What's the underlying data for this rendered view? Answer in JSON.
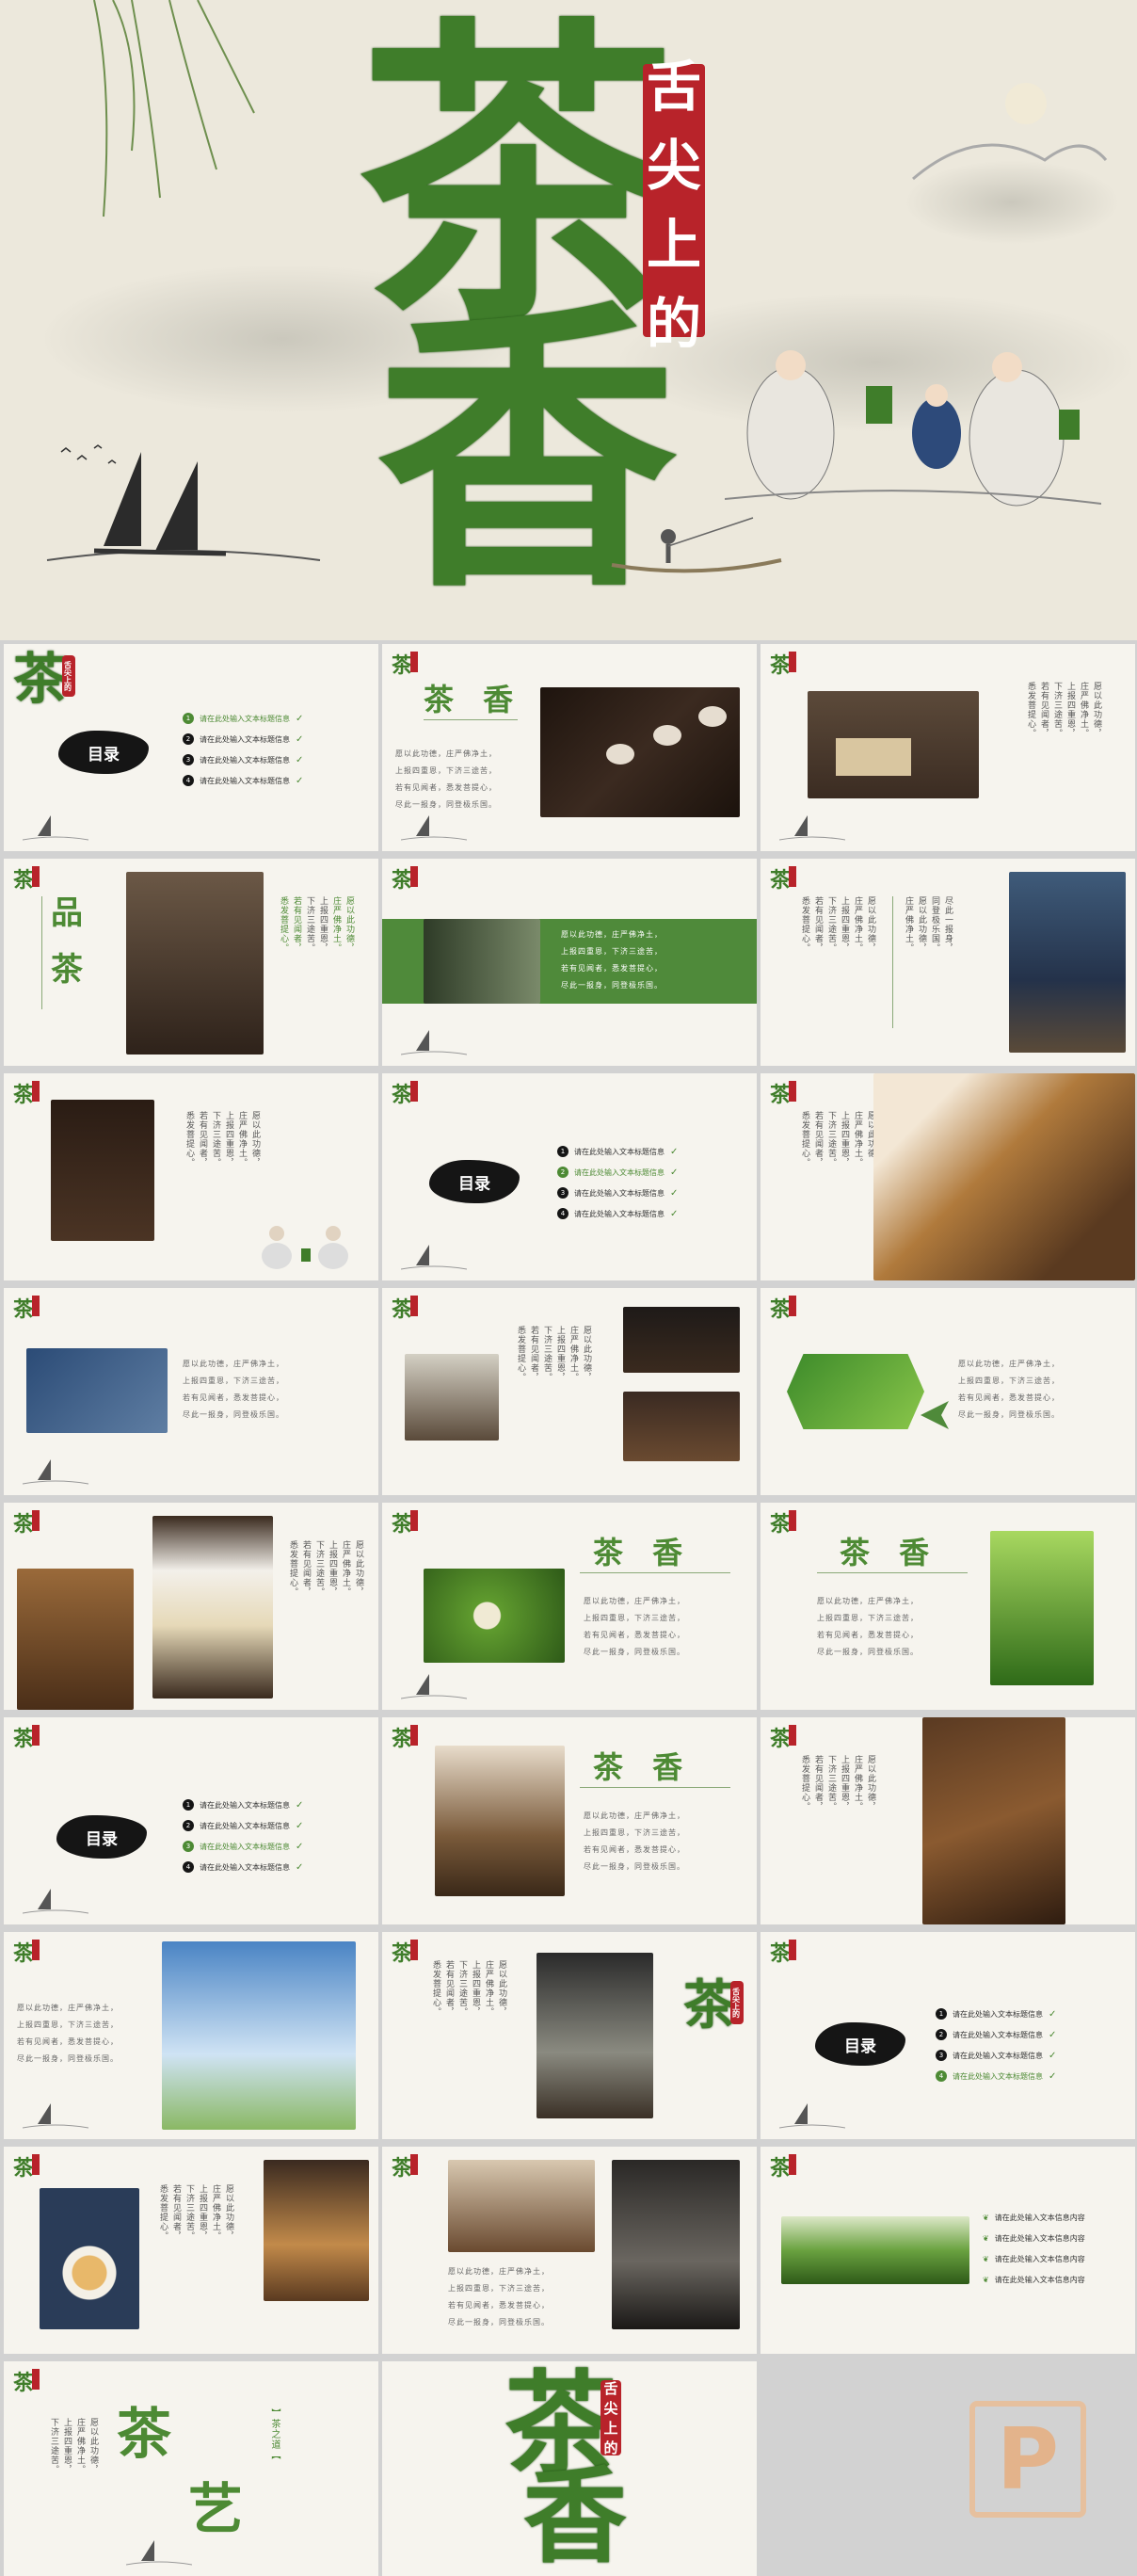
{
  "hero": {
    "char_top": "茶",
    "char_bottom": "香",
    "seal_text": [
      "舌",
      "尖",
      "上",
      "的"
    ]
  },
  "slide_logo": {
    "char": "茶",
    "seal": "舌尖上的"
  },
  "toc": {
    "title": "目录",
    "item": "请在此处输入文本标题信息"
  },
  "text": {
    "cha_xiang": "茶 香",
    "pin": "品",
    "cha": "茶",
    "yi": "艺",
    "cha_zhi_dao": "】茶之道【",
    "poem_lines": [
      "愿以此功德，",
      "庄严佛净土。",
      "上报四重恩，",
      "下济三途苦。",
      "若有见闻者，",
      "悉发菩提心。",
      "尽此一报身，",
      "同登极乐国。"
    ],
    "h_poem": [
      "愿以此功德，庄严佛净土，",
      "上报四重恩，下济三途苦，",
      "若有见闻者，悉发菩提心，",
      "尽此一报身，同登极乐国。"
    ],
    "list_item": "请在此处输入文本信息内容"
  },
  "colors": {
    "green": "#4d8a34",
    "red": "#b8232a",
    "bg": "#f6f4ee"
  }
}
